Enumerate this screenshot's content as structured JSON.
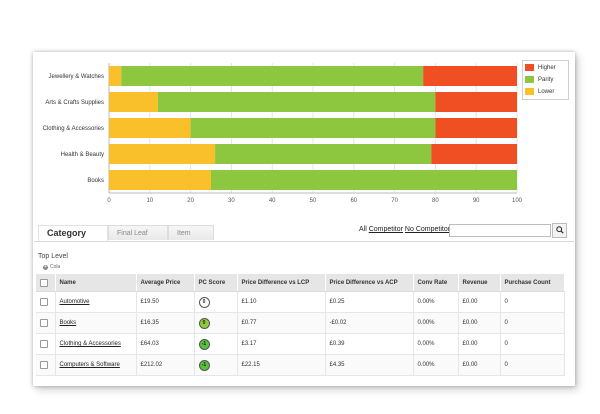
{
  "chart_data": {
    "type": "bar",
    "orientation": "horizontal",
    "stacked": true,
    "categories": [
      "Jewellery & Watches",
      "Arts & Crafts Supplies",
      "Clothing & Accessories",
      "Health & Beauty",
      "Books"
    ],
    "series": [
      {
        "name": "Lower",
        "color": "#f9c02c",
        "values": [
          3,
          12,
          20,
          26,
          25
        ]
      },
      {
        "name": "Parity",
        "color": "#8dc63f",
        "values": [
          74,
          68,
          60,
          53,
          75
        ]
      },
      {
        "name": "Higher",
        "color": "#f04e23",
        "values": [
          23,
          20,
          20,
          21,
          0
        ]
      }
    ],
    "xlim": [
      0,
      100
    ],
    "xticks": [
      "0",
      "10",
      "20",
      "30",
      "40",
      "50",
      "60",
      "70",
      "80",
      "90",
      "100"
    ],
    "legend_order": [
      "Higher",
      "Parity",
      "Lower"
    ],
    "legend_position": "right"
  },
  "tabs": [
    {
      "label": "Category"
    },
    {
      "label": "Final Leaf"
    },
    {
      "label": "Item"
    }
  ],
  "filter": {
    "all": "All",
    "competitor": "Competitor",
    "no_competitor": "No Competitor",
    "search_placeholder": ""
  },
  "search_icon": "magnifier-icon",
  "breadcrumb": {
    "top_level": "Top Level",
    "sub": "Cola"
  },
  "table": {
    "headers": [
      "Name",
      "Average Price",
      "PC Score",
      "Price Difference vs LCP",
      "Price Difference vs ACP",
      "Conv Rate",
      "Revenue",
      "Purchase Count"
    ],
    "rows": [
      {
        "name": "Automotive",
        "avg_price": "£19.50",
        "pc_score": "0",
        "score_color": "white",
        "diff_lcp": "£1.10",
        "diff_acp": "£0.25",
        "conv": "0.00%",
        "revenue": "£0.00",
        "count": "0"
      },
      {
        "name": "Books",
        "avg_price": "£16.35",
        "pc_score": "0",
        "score_color": "lime",
        "diff_lcp": "£0.77",
        "diff_acp": "-£0.02",
        "conv": "0.00%",
        "revenue": "£0.00",
        "count": "0"
      },
      {
        "name": "Clothing & Accessories",
        "avg_price": "£64.03",
        "pc_score": "-1",
        "score_color": "green",
        "diff_lcp": "£3.17",
        "diff_acp": "£0.39",
        "conv": "0.00%",
        "revenue": "£0.00",
        "count": "0"
      },
      {
        "name": "Computers & Software",
        "avg_price": "£212.02",
        "pc_score": "-1",
        "score_color": "green",
        "diff_lcp": "£22.15",
        "diff_acp": "£4.35",
        "conv": "0.00%",
        "revenue": "£0.00",
        "count": "0"
      }
    ]
  }
}
